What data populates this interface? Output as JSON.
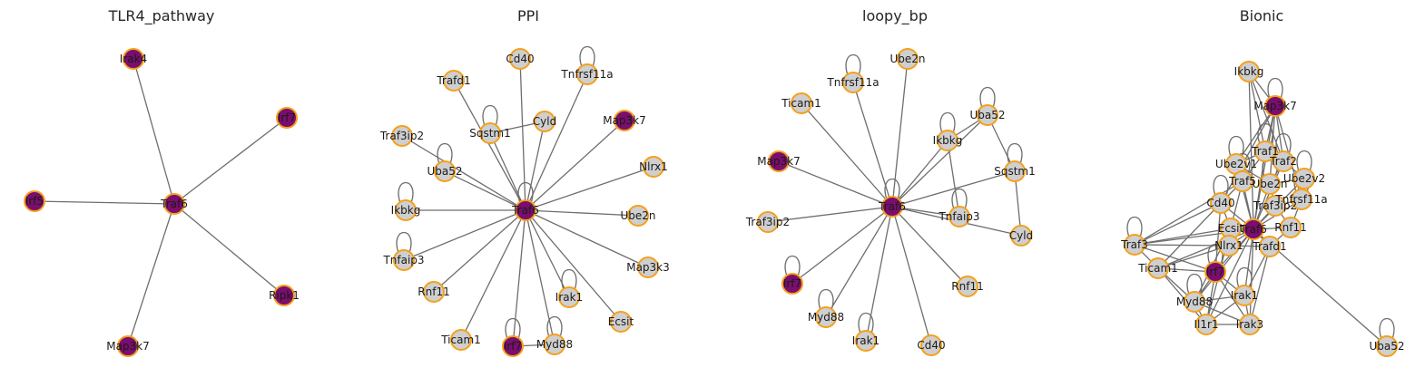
{
  "colors": {
    "highlight": "#7a0e6e",
    "normal": "#cfcfcf",
    "border": "#f5a01a",
    "edge": "#6e6e6e"
  },
  "panels": [
    {
      "title": "TLR4_pathway",
      "nodes": [
        {
          "id": "Irak4",
          "hl": true
        },
        {
          "id": "Irf7",
          "hl": true
        },
        {
          "id": "Irf5",
          "hl": true
        },
        {
          "id": "Traf6",
          "hl": true
        },
        {
          "id": "Ripk1",
          "hl": true
        },
        {
          "id": "Map3k7",
          "hl": true
        }
      ],
      "edges": [
        [
          "Traf6",
          "Irak4"
        ],
        [
          "Traf6",
          "Irf7"
        ],
        [
          "Traf6",
          "Irf5"
        ],
        [
          "Traf6",
          "Ripk1"
        ],
        [
          "Traf6",
          "Map3k7"
        ]
      ],
      "loops": []
    },
    {
      "title": "PPI",
      "nodes": [
        {
          "id": "Cd40"
        },
        {
          "id": "Tnfrsf11a"
        },
        {
          "id": "Trafd1"
        },
        {
          "id": "Map3k7",
          "hl": true
        },
        {
          "id": "Traf3ip2"
        },
        {
          "id": "Sqstm1"
        },
        {
          "id": "Cyld"
        },
        {
          "id": "Uba52"
        },
        {
          "id": "Nlrx1"
        },
        {
          "id": "Ikbkg"
        },
        {
          "id": "Traf6",
          "hl": true
        },
        {
          "id": "Ube2n"
        },
        {
          "id": "Tnfaip3"
        },
        {
          "id": "Map3k3"
        },
        {
          "id": "Rnf11"
        },
        {
          "id": "Irak1"
        },
        {
          "id": "Ecsit"
        },
        {
          "id": "Ticam1"
        },
        {
          "id": "Irf7",
          "hl": true
        },
        {
          "id": "Myd88"
        }
      ],
      "edges": [
        [
          "Traf6",
          "Cd40"
        ],
        [
          "Traf6",
          "Tnfrsf11a"
        ],
        [
          "Traf6",
          "Trafd1"
        ],
        [
          "Traf6",
          "Map3k7"
        ],
        [
          "Traf6",
          "Traf3ip2"
        ],
        [
          "Traf6",
          "Sqstm1"
        ],
        [
          "Traf6",
          "Cyld"
        ],
        [
          "Traf6",
          "Uba52"
        ],
        [
          "Traf6",
          "Nlrx1"
        ],
        [
          "Traf6",
          "Ikbkg"
        ],
        [
          "Traf6",
          "Ube2n"
        ],
        [
          "Traf6",
          "Tnfaip3"
        ],
        [
          "Traf6",
          "Map3k3"
        ],
        [
          "Traf6",
          "Rnf11"
        ],
        [
          "Traf6",
          "Irak1"
        ],
        [
          "Traf6",
          "Ecsit"
        ],
        [
          "Traf6",
          "Ticam1"
        ],
        [
          "Traf6",
          "Irf7"
        ],
        [
          "Traf6",
          "Myd88"
        ],
        [
          "Sqstm1",
          "Cyld"
        ],
        [
          "Irf7",
          "Myd88"
        ]
      ],
      "loops": [
        "Tnfrsf11a",
        "Sqstm1",
        "Uba52",
        "Ikbkg",
        "Tnfaip3",
        "Traf6",
        "Irak1",
        "Irf7",
        "Myd88"
      ]
    },
    {
      "title": "loopy_bp",
      "nodes": [
        {
          "id": "Ube2n"
        },
        {
          "id": "Tnfrsf11a"
        },
        {
          "id": "Ticam1"
        },
        {
          "id": "Uba52"
        },
        {
          "id": "Ikbkg"
        },
        {
          "id": "Map3k7",
          "hl": true
        },
        {
          "id": "Sqstm1"
        },
        {
          "id": "Traf6",
          "hl": true
        },
        {
          "id": "Tnfaip3"
        },
        {
          "id": "Traf3ip2"
        },
        {
          "id": "Cyld"
        },
        {
          "id": "Irf7",
          "hl": true
        },
        {
          "id": "Rnf11"
        },
        {
          "id": "Myd88"
        },
        {
          "id": "Irak1"
        },
        {
          "id": "Cd40"
        }
      ],
      "edges": [
        [
          "Traf6",
          "Ube2n"
        ],
        [
          "Traf6",
          "Tnfrsf11a"
        ],
        [
          "Traf6",
          "Ticam1"
        ],
        [
          "Traf6",
          "Uba52"
        ],
        [
          "Traf6",
          "Ikbkg"
        ],
        [
          "Traf6",
          "Map3k7"
        ],
        [
          "Traf6",
          "Sqstm1"
        ],
        [
          "Traf6",
          "Tnfaip3"
        ],
        [
          "Traf6",
          "Traf3ip2"
        ],
        [
          "Traf6",
          "Cyld"
        ],
        [
          "Traf6",
          "Irf7"
        ],
        [
          "Traf6",
          "Rnf11"
        ],
        [
          "Traf6",
          "Myd88"
        ],
        [
          "Traf6",
          "Irak1"
        ],
        [
          "Traf6",
          "Cd40"
        ],
        [
          "Ikbkg",
          "Uba52"
        ],
        [
          "Uba52",
          "Sqstm1"
        ],
        [
          "Sqstm1",
          "Cyld"
        ],
        [
          "Ikbkg",
          "Tnfaip3"
        ]
      ],
      "loops": [
        "Tnfrsf11a",
        "Uba52",
        "Ikbkg",
        "Sqstm1",
        "Traf6",
        "Tnfaip3",
        "Irf7",
        "Myd88",
        "Irak1"
      ]
    },
    {
      "title": "Bionic",
      "nodes": [
        {
          "id": "Ikbkg"
        },
        {
          "id": "Map3k7",
          "hl": true
        },
        {
          "id": "Traf1"
        },
        {
          "id": "Ube2v1"
        },
        {
          "id": "Traf2"
        },
        {
          "id": "Ube2v2"
        },
        {
          "id": "Traf5"
        },
        {
          "id": "Ube2n"
        },
        {
          "id": "Tnfrsf11a"
        },
        {
          "id": "Cd40"
        },
        {
          "id": "Traf3ip2"
        },
        {
          "id": "Ecsit"
        },
        {
          "id": "Traf6",
          "hl": true
        },
        {
          "id": "Rnf11"
        },
        {
          "id": "Traf3"
        },
        {
          "id": "Nlrx1"
        },
        {
          "id": "Trafd1"
        },
        {
          "id": "Ticam1"
        },
        {
          "id": "Irf7",
          "hl": true
        },
        {
          "id": "Irak1"
        },
        {
          "id": "Myd88"
        },
        {
          "id": "Il1r1"
        },
        {
          "id": "Irak3"
        },
        {
          "id": "Uba52"
        }
      ],
      "edges": [
        [
          "Traf6",
          "Ikbkg"
        ],
        [
          "Traf6",
          "Map3k7"
        ],
        [
          "Traf6",
          "Traf1"
        ],
        [
          "Traf6",
          "Ube2v1"
        ],
        [
          "Traf6",
          "Traf2"
        ],
        [
          "Traf6",
          "Ube2v2"
        ],
        [
          "Traf6",
          "Traf5"
        ],
        [
          "Traf6",
          "Ube2n"
        ],
        [
          "Traf6",
          "Tnfrsf11a"
        ],
        [
          "Traf6",
          "Cd40"
        ],
        [
          "Traf6",
          "Traf3ip2"
        ],
        [
          "Traf6",
          "Ecsit"
        ],
        [
          "Traf6",
          "Rnf11"
        ],
        [
          "Traf6",
          "Traf3"
        ],
        [
          "Traf6",
          "Nlrx1"
        ],
        [
          "Traf6",
          "Trafd1"
        ],
        [
          "Traf6",
          "Ticam1"
        ],
        [
          "Traf6",
          "Irf7"
        ],
        [
          "Traf6",
          "Irak1"
        ],
        [
          "Traf6",
          "Myd88"
        ],
        [
          "Traf6",
          "Il1r1"
        ],
        [
          "Traf6",
          "Irak3"
        ],
        [
          "Traf6",
          "Uba52"
        ],
        [
          "Ikbkg",
          "Map3k7"
        ],
        [
          "Ikbkg",
          "Traf1"
        ],
        [
          "Ikbkg",
          "Traf2"
        ],
        [
          "Map3k7",
          "Traf1"
        ],
        [
          "Map3k7",
          "Traf2"
        ],
        [
          "Map3k7",
          "Ube2v1"
        ],
        [
          "Map3k7",
          "Ube2n"
        ],
        [
          "Map3k7",
          "Tnfrsf11a"
        ],
        [
          "Map3k7",
          "Cd40"
        ],
        [
          "Traf1",
          "Traf2"
        ],
        [
          "Traf1",
          "Ube2v1"
        ],
        [
          "Traf1",
          "Traf5"
        ],
        [
          "Traf2",
          "Ube2v2"
        ],
        [
          "Traf2",
          "Ube2n"
        ],
        [
          "Ube2v1",
          "Ube2n"
        ],
        [
          "Ube2v1",
          "Traf5"
        ],
        [
          "Ube2v2",
          "Ube2n"
        ],
        [
          "Ube2n",
          "Traf3ip2"
        ],
        [
          "Traf5",
          "Cd40"
        ],
        [
          "Traf5",
          "Traf3"
        ],
        [
          "Cd40",
          "Traf3"
        ],
        [
          "Cd40",
          "Ticam1"
        ],
        [
          "Cd40",
          "Ecsit"
        ],
        [
          "Traf3ip2",
          "Tnfrsf11a"
        ],
        [
          "Traf3ip2",
          "Rnf11"
        ],
        [
          "Ecsit",
          "Nlrx1"
        ],
        [
          "Ecsit",
          "Traf3"
        ],
        [
          "Traf3",
          "Ticam1"
        ],
        [
          "Traf3",
          "Irf7"
        ],
        [
          "Traf3",
          "Nlrx1"
        ],
        [
          "Ticam1",
          "Irf7"
        ],
        [
          "Ticam1",
          "Myd88"
        ],
        [
          "Ticam1",
          "Il1r1"
        ],
        [
          "Irf7",
          "Irak1"
        ],
        [
          "Irf7",
          "Myd88"
        ],
        [
          "Irf7",
          "Il1r1"
        ],
        [
          "Irf7",
          "Irak3"
        ],
        [
          "Irak1",
          "Myd88"
        ],
        [
          "Irak1",
          "Il1r1"
        ],
        [
          "Irak1",
          "Irak3"
        ],
        [
          "Myd88",
          "Il1r1"
        ],
        [
          "Myd88",
          "Irak3"
        ],
        [
          "Il1r1",
          "Irak3"
        ],
        [
          "Trafd1",
          "Rnf11"
        ],
        [
          "Trafd1",
          "Irak1"
        ],
        [
          "Trafd1",
          "Irak3"
        ],
        [
          "Nlrx1",
          "Trafd1"
        ],
        [
          "Rnf11",
          "Tnfrsf11a"
        ],
        [
          "Irf7",
          "Cd40"
        ],
        [
          "Ticam1",
          "Nlrx1"
        ],
        [
          "Myd88",
          "Ecsit"
        ],
        [
          "Il1r1",
          "Traf5"
        ]
      ],
      "loops": [
        "Map3k7",
        "Traf1",
        "Ube2v1",
        "Traf2",
        "Ube2v2",
        "Traf5",
        "Ube2n",
        "Cd40",
        "Traf3",
        "Irf7",
        "Myd88",
        "Irak1",
        "Uba52",
        "Tnfrsf11a"
      ]
    }
  ]
}
